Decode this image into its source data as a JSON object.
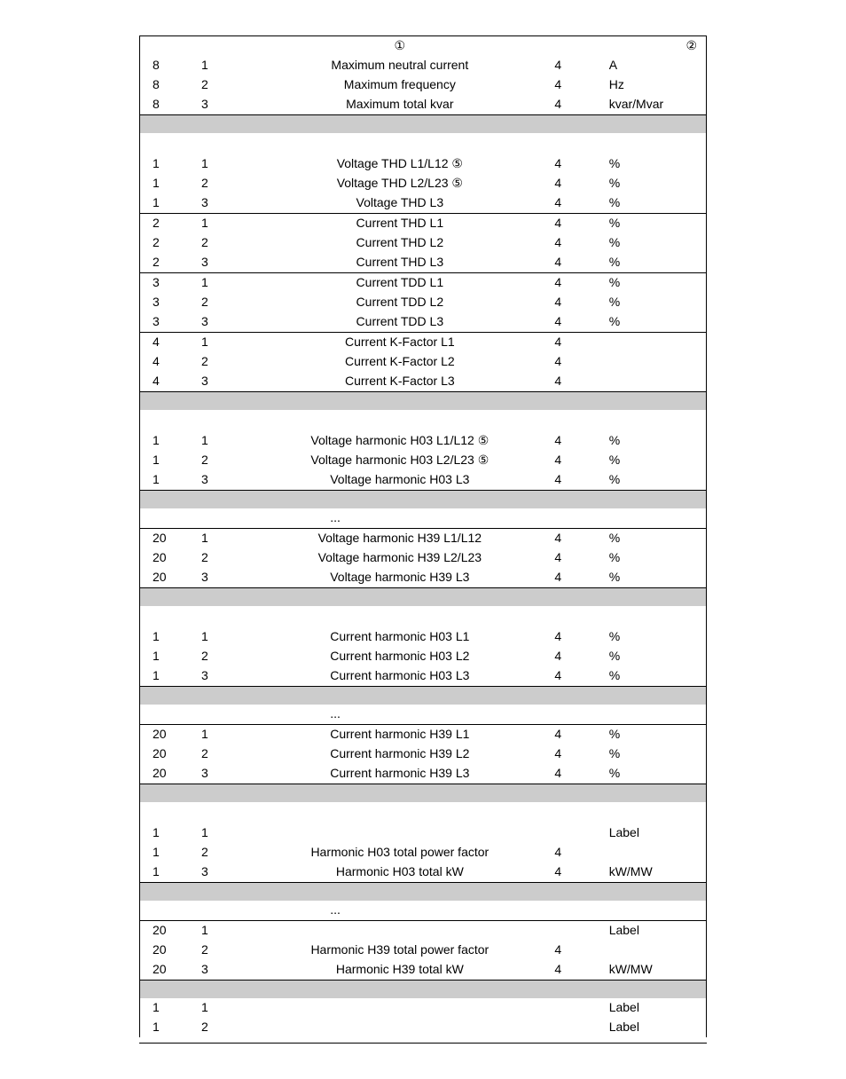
{
  "header": {
    "col_desc": "①",
    "col_unit": "②"
  },
  "ellipsis": "...",
  "groups": [
    {
      "section_break": false,
      "spacer": false,
      "rows": [
        {
          "a": "8",
          "b": "1",
          "desc": "Maximum neutral current",
          "d": "4",
          "unit": "A",
          "sep": false
        },
        {
          "a": "8",
          "b": "2",
          "desc": "Maximum frequency",
          "d": "4",
          "unit": "Hz",
          "sep": false
        },
        {
          "a": "8",
          "b": "3",
          "desc": "Maximum total kvar",
          "d": "4",
          "unit": "kvar/Mvar",
          "sep": false
        }
      ]
    },
    {
      "section_break": true,
      "spacer": true,
      "rows": [
        {
          "a": "1",
          "b": "1",
          "desc": "Voltage THD L1/L12 ⑤",
          "d": "4",
          "unit": "%",
          "sep": false
        },
        {
          "a": "1",
          "b": "2",
          "desc": "Voltage THD L2/L23 ⑤",
          "d": "4",
          "unit": "%",
          "sep": false
        },
        {
          "a": "1",
          "b": "3",
          "desc": "Voltage THD L3",
          "d": "4",
          "unit": "%",
          "sep": false
        },
        {
          "a": "2",
          "b": "1",
          "desc": "Current THD L1",
          "d": "4",
          "unit": "%",
          "sep": true
        },
        {
          "a": "2",
          "b": "2",
          "desc": "Current THD L2",
          "d": "4",
          "unit": "%",
          "sep": false
        },
        {
          "a": "2",
          "b": "3",
          "desc": "Current THD L3",
          "d": "4",
          "unit": "%",
          "sep": false
        },
        {
          "a": "3",
          "b": "1",
          "desc": "Current TDD L1",
          "d": "4",
          "unit": "%",
          "sep": true
        },
        {
          "a": "3",
          "b": "2",
          "desc": "Current TDD L2",
          "d": "4",
          "unit": "%",
          "sep": false
        },
        {
          "a": "3",
          "b": "3",
          "desc": "Current TDD L3",
          "d": "4",
          "unit": "%",
          "sep": false
        },
        {
          "a": "4",
          "b": "1",
          "desc": "Current K-Factor L1",
          "d": "4",
          "unit": "",
          "sep": true
        },
        {
          "a": "4",
          "b": "2",
          "desc": "Current K-Factor L2",
          "d": "4",
          "unit": "",
          "sep": false
        },
        {
          "a": "4",
          "b": "3",
          "desc": "Current K-Factor L3",
          "d": "4",
          "unit": "",
          "sep": false
        }
      ]
    },
    {
      "section_break": true,
      "spacer": true,
      "rows": [
        {
          "a": "1",
          "b": "1",
          "desc": "Voltage harmonic H03 L1/L12 ⑤",
          "d": "4",
          "unit": "%",
          "sep": false
        },
        {
          "a": "1",
          "b": "2",
          "desc": "Voltage harmonic H03 L2/L23 ⑤",
          "d": "4",
          "unit": "%",
          "sep": false
        },
        {
          "a": "1",
          "b": "3",
          "desc": "Voltage harmonic H03 L3",
          "d": "4",
          "unit": "%",
          "sep": false
        }
      ],
      "ellipsis_after": true,
      "rows2": [
        {
          "a": "20",
          "b": "1",
          "desc": "Voltage harmonic H39 L1/L12",
          "d": "4",
          "unit": "%",
          "sep": false
        },
        {
          "a": "20",
          "b": "2",
          "desc": "Voltage harmonic H39 L2/L23",
          "d": "4",
          "unit": "%",
          "sep": false
        },
        {
          "a": "20",
          "b": "3",
          "desc": "Voltage harmonic H39 L3",
          "d": "4",
          "unit": "%",
          "sep": false
        }
      ]
    },
    {
      "section_break": true,
      "spacer": true,
      "rows": [
        {
          "a": "1",
          "b": "1",
          "desc": "Current harmonic H03 L1",
          "d": "4",
          "unit": "%",
          "sep": false
        },
        {
          "a": "1",
          "b": "2",
          "desc": "Current harmonic H03 L2",
          "d": "4",
          "unit": "%",
          "sep": false
        },
        {
          "a": "1",
          "b": "3",
          "desc": "Current harmonic H03 L3",
          "d": "4",
          "unit": "%",
          "sep": false
        }
      ],
      "ellipsis_after": true,
      "rows2": [
        {
          "a": "20",
          "b": "1",
          "desc": "Current harmonic H39 L1",
          "d": "4",
          "unit": "%",
          "sep": false
        },
        {
          "a": "20",
          "b": "2",
          "desc": "Current harmonic H39 L2",
          "d": "4",
          "unit": "%",
          "sep": false
        },
        {
          "a": "20",
          "b": "3",
          "desc": "Current harmonic H39 L3",
          "d": "4",
          "unit": "%",
          "sep": false
        }
      ]
    },
    {
      "section_break": true,
      "spacer": true,
      "rows": [
        {
          "a": "1",
          "b": "1",
          "desc": "",
          "d": "",
          "unit": "Label",
          "sep": false
        },
        {
          "a": "1",
          "b": "2",
          "desc": "Harmonic H03 total power factor",
          "d": "4",
          "unit": "",
          "sep": false
        },
        {
          "a": "1",
          "b": "3",
          "desc": "Harmonic H03 total kW",
          "d": "4",
          "unit": "kW/MW",
          "sep": false
        }
      ],
      "ellipsis_after": true,
      "rows2": [
        {
          "a": "20",
          "b": "1",
          "desc": "",
          "d": "",
          "unit": "Label",
          "sep": false
        },
        {
          "a": "20",
          "b": "2",
          "desc": "Harmonic H39 total power factor",
          "d": "4",
          "unit": "",
          "sep": false
        },
        {
          "a": "20",
          "b": "3",
          "desc": "Harmonic H39 total kW",
          "d": "4",
          "unit": "kW/MW",
          "sep": false
        }
      ]
    },
    {
      "section_break": true,
      "spacer": false,
      "rows": [
        {
          "a": "1",
          "b": "1",
          "desc": "",
          "d": "",
          "unit": "Label",
          "sep": false
        },
        {
          "a": "1",
          "b": "2",
          "desc": "",
          "d": "",
          "unit": "Label",
          "sep": false
        }
      ]
    }
  ]
}
